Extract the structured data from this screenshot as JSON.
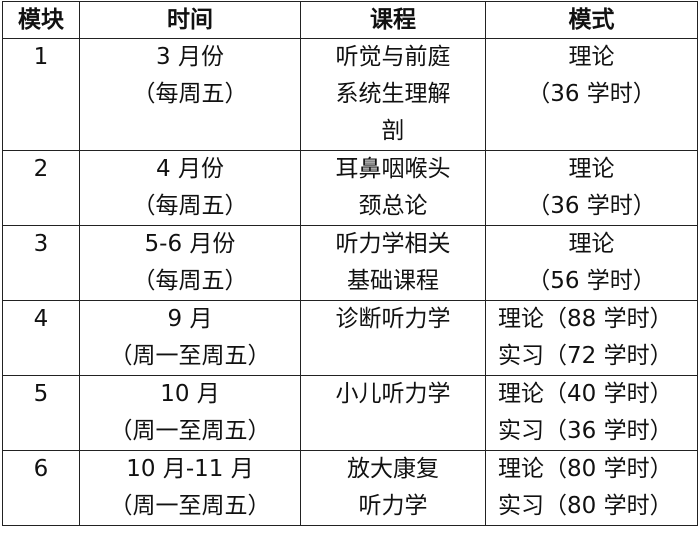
{
  "headers": [
    "模块",
    "时间",
    "课程",
    "模式"
  ],
  "rows": [
    {
      "module": "1",
      "time": [
        "3 月份",
        "（每周五）"
      ],
      "course": [
        "听觉与前庭",
        "系统生理解",
        "剖"
      ],
      "mode": [
        "理论",
        "（36 学时）"
      ],
      "mode_align": "center"
    },
    {
      "module": "2",
      "time": [
        "4 月份",
        "（每周五）"
      ],
      "course": [
        "耳鼻咽喉头",
        "颈总论"
      ],
      "mode": [
        "理论",
        "（36 学时）"
      ],
      "mode_align": "center"
    },
    {
      "module": "3",
      "time": [
        "5-6 月份",
        "（每周五）"
      ],
      "course": [
        "听力学相关",
        "基础课程"
      ],
      "mode": [
        "理论",
        "（56 学时）"
      ],
      "mode_align": "center"
    },
    {
      "module": "4",
      "time": [
        "9 月",
        "（周一至周五）"
      ],
      "course": [
        "诊断听力学"
      ],
      "mode": [
        "理论（88 学时）",
        "实习（72 学时）"
      ],
      "mode_align": "left"
    },
    {
      "module": "5",
      "time": [
        "10 月",
        "（周一至周五）"
      ],
      "course": [
        "小儿听力学"
      ],
      "mode": [
        "理论（40 学时）",
        "实习（36 学时）"
      ],
      "mode_align": "left"
    },
    {
      "module": "6",
      "time": [
        "10 月-11 月",
        "（周一至周五）"
      ],
      "course": [
        "放大康复",
        "听力学"
      ],
      "mode": [
        "理论（80 学时）",
        "实习（80 学时）"
      ],
      "mode_align": "left"
    }
  ]
}
